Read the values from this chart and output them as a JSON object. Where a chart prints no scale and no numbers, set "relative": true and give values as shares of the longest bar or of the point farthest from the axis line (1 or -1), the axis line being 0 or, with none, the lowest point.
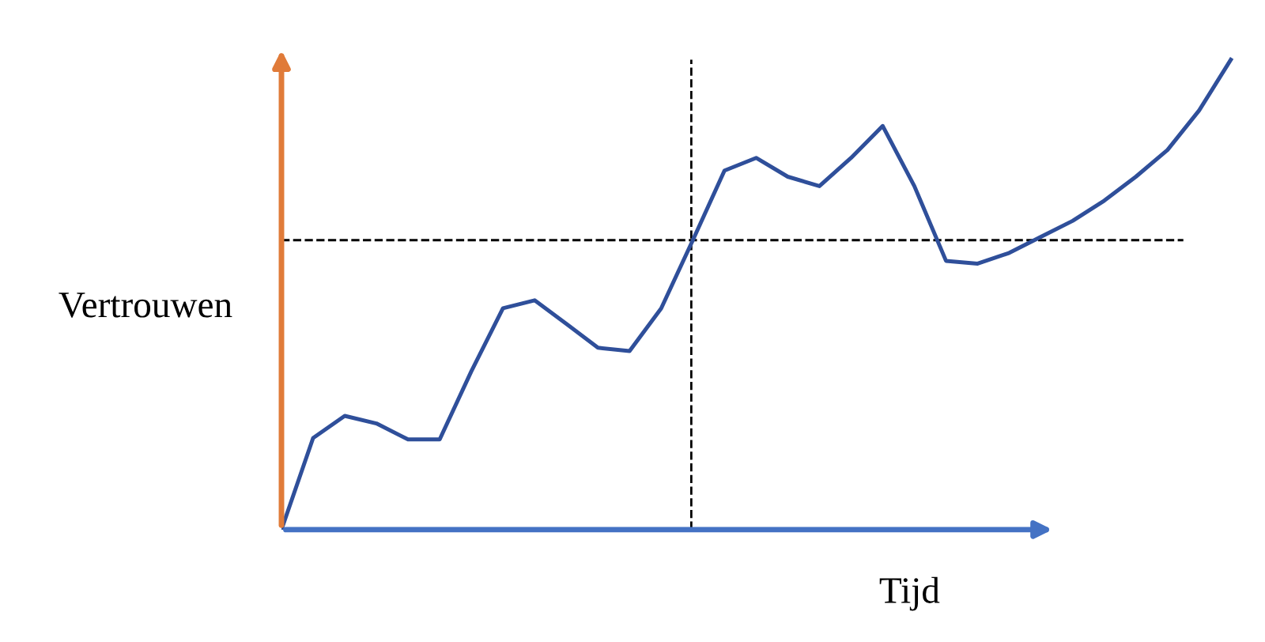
{
  "chart_data": {
    "type": "line",
    "relative": true,
    "xlabel": "Tijd",
    "ylabel": "Vertrouwen",
    "categories": [
      null,
      null,
      null,
      null,
      null,
      null,
      null,
      null,
      null,
      null,
      null,
      null,
      null,
      null,
      null,
      null,
      null,
      null,
      null,
      null,
      null,
      null,
      null,
      null,
      null,
      null,
      null,
      null,
      null,
      null,
      null
    ],
    "series": [
      {
        "color": "#2f4f9a",
        "values": [
          0,
          0.195,
          0.242,
          0.226,
          0.192,
          0.192,
          0.337,
          0.471,
          0.488,
          0.438,
          0.387,
          0.38,
          0.471,
          0.616,
          0.764,
          0.791,
          0.751,
          0.731,
          0.791,
          0.859,
          0.731,
          0.572,
          0.566,
          0.589,
          0.623,
          0.657,
          0.7,
          0.751,
          0.808,
          0.892,
          1
        ]
      }
    ],
    "ref_lines": [
      {
        "axis": "y",
        "value": 0.616,
        "color": "#000000",
        "line_style": "dashed"
      }
    ],
    "legend": false,
    "marker": "none",
    "line_style": "solid"
  }
}
